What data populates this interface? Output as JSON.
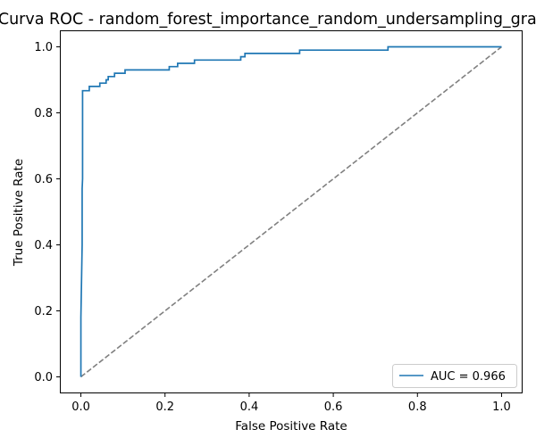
{
  "chart_data": {
    "type": "line",
    "title": "Curva ROC - random_forest_importance_random_undersampling_gradient_",
    "xlabel": "False Positive Rate",
    "ylabel": "True Positive Rate",
    "xlim": [
      -0.05,
      1.05
    ],
    "ylim": [
      -0.05,
      1.05
    ],
    "xticks": [
      0.0,
      0.2,
      0.4,
      0.6,
      0.8,
      1.0
    ],
    "yticks": [
      0.0,
      0.2,
      0.4,
      0.6,
      0.8,
      1.0
    ],
    "xtick_labels": [
      "0.0",
      "0.2",
      "0.4",
      "0.6",
      "0.8",
      "1.0"
    ],
    "ytick_labels": [
      "0.0",
      "0.2",
      "0.4",
      "0.6",
      "0.8",
      "1.0"
    ],
    "grid": false,
    "legend_position": "lower-right",
    "series": [
      {
        "name": "AUC = 0.966",
        "color": "#1f77b4",
        "style": "solid",
        "x": [
          0.0,
          0.0,
          0.003,
          0.003,
          0.004,
          0.004,
          0.02,
          0.02,
          0.045,
          0.045,
          0.06,
          0.06,
          0.065,
          0.065,
          0.08,
          0.08,
          0.105,
          0.105,
          0.21,
          0.21,
          0.23,
          0.23,
          0.27,
          0.27,
          0.38,
          0.38,
          0.39,
          0.39,
          0.52,
          0.52,
          0.73,
          0.73,
          1.0
        ],
        "y": [
          0.0,
          0.18,
          0.4,
          0.57,
          0.6,
          0.867,
          0.867,
          0.88,
          0.88,
          0.89,
          0.89,
          0.9,
          0.9,
          0.91,
          0.91,
          0.92,
          0.92,
          0.93,
          0.93,
          0.94,
          0.94,
          0.95,
          0.95,
          0.96,
          0.96,
          0.97,
          0.97,
          0.98,
          0.98,
          0.99,
          0.99,
          1.0,
          1.0
        ]
      },
      {
        "name": "",
        "color": "#808080",
        "style": "dashed",
        "x": [
          0,
          1
        ],
        "y": [
          0,
          1
        ]
      }
    ]
  }
}
